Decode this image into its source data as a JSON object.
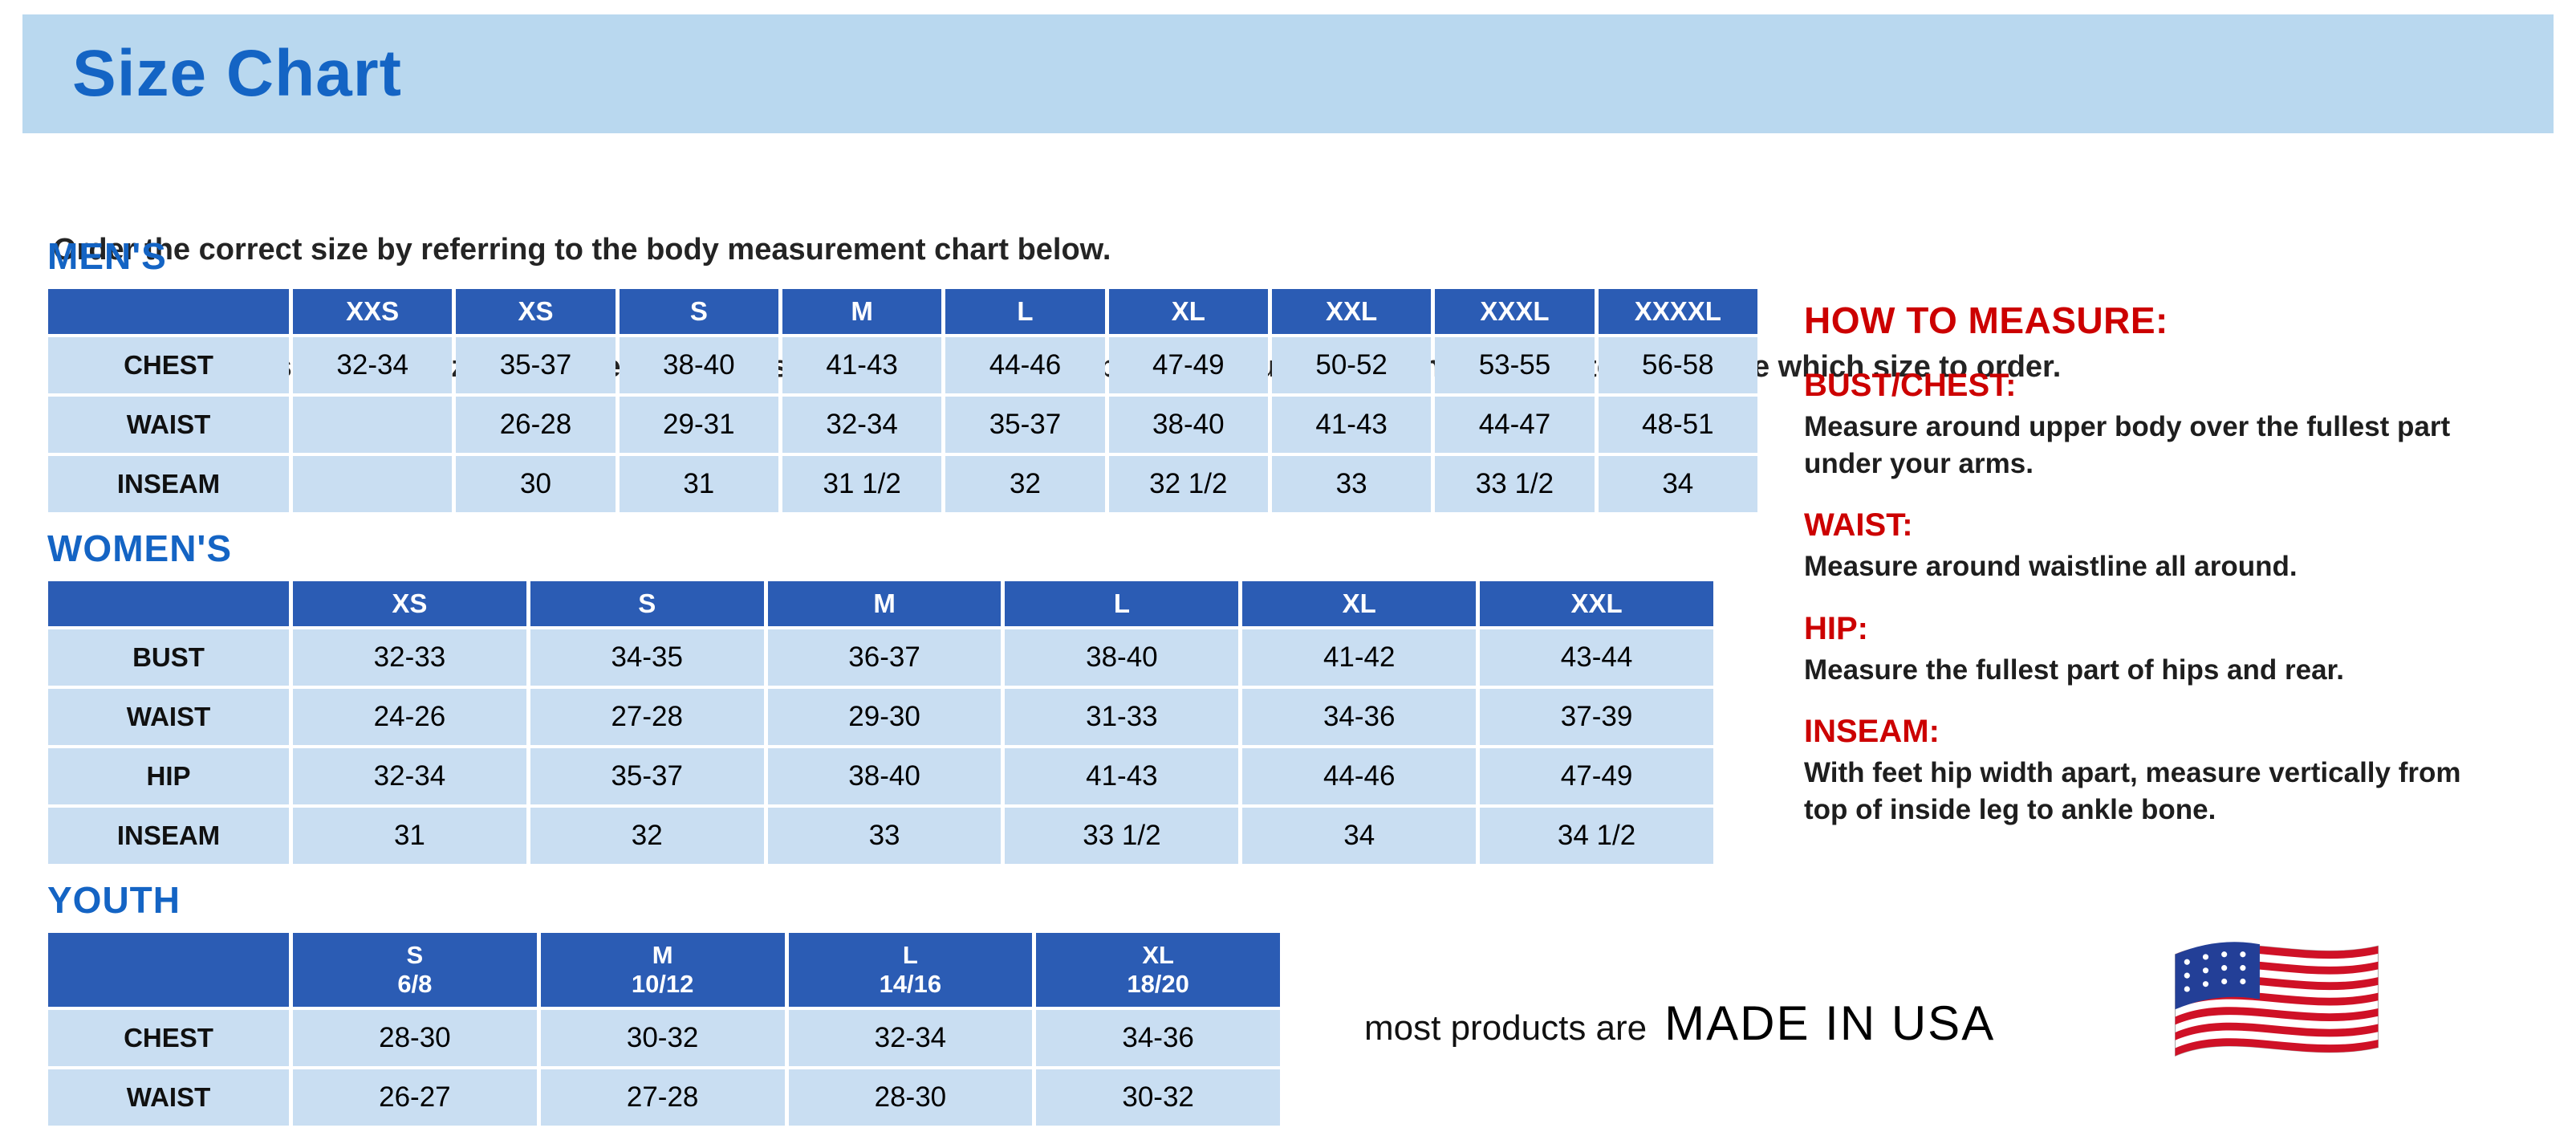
{
  "page": {
    "title": "Size Chart",
    "intro_line1": "Order the correct size by referring to the body measurement chart below.",
    "intro_line2": "Measurements shown on size chart are body measurements.  Find your body measurements on the chart to determine which size to order."
  },
  "tables": {
    "mens": {
      "heading": "MEN'S",
      "columns": [
        "",
        "XXS",
        "XS",
        "S",
        "M",
        "L",
        "XL",
        "XXL",
        "XXXL",
        "XXXXL"
      ],
      "rows": [
        {
          "label": "CHEST",
          "values": [
            "32-34",
            "35-37",
            "38-40",
            "41-43",
            "44-46",
            "47-49",
            "50-52",
            "53-55",
            "56-58"
          ]
        },
        {
          "label": "WAIST",
          "values": [
            "",
            "26-28",
            "29-31",
            "32-34",
            "35-37",
            "38-40",
            "41-43",
            "44-47",
            "48-51"
          ]
        },
        {
          "label": "INSEAM",
          "values": [
            "",
            "30",
            "31",
            "31 1/2",
            "32",
            "32 1/2",
            "33",
            "33 1/2",
            "34"
          ]
        }
      ]
    },
    "womens": {
      "heading": "WOMEN'S",
      "columns": [
        "",
        "XS",
        "S",
        "M",
        "L",
        "XL",
        "XXL"
      ],
      "rows": [
        {
          "label": "BUST",
          "values": [
            "32-33",
            "34-35",
            "36-37",
            "38-40",
            "41-42",
            "43-44"
          ]
        },
        {
          "label": "WAIST",
          "values": [
            "24-26",
            "27-28",
            "29-30",
            "31-33",
            "34-36",
            "37-39"
          ]
        },
        {
          "label": "HIP",
          "values": [
            "32-34",
            "35-37",
            "38-40",
            "41-43",
            "44-46",
            "47-49"
          ]
        },
        {
          "label": "INSEAM",
          "values": [
            "31",
            "32",
            "33",
            "33 1/2",
            "34",
            "34 1/2"
          ]
        }
      ]
    },
    "youth": {
      "heading": "YOUTH",
      "columns": [
        "",
        "S\n6/8",
        "M\n10/12",
        "L\n14/16",
        "XL\n18/20"
      ],
      "rows": [
        {
          "label": "CHEST",
          "values": [
            "28-30",
            "30-32",
            "32-34",
            "34-36"
          ]
        },
        {
          "label": "WAIST",
          "values": [
            "26-27",
            "27-28",
            "28-30",
            "30-32"
          ]
        }
      ]
    }
  },
  "how_to_measure": {
    "heading": "HOW TO MEASURE:",
    "sections": [
      {
        "label": "BUST/CHEST:",
        "text": "Measure around upper body over the fullest part under your arms."
      },
      {
        "label": "WAIST:",
        "text": "Measure around waistline all around."
      },
      {
        "label": "HIP:",
        "text": "Measure the fullest part of hips and rear."
      },
      {
        "label": "INSEAM:",
        "text": "With feet hip width apart, measure vertically from top of inside leg to ankle bone."
      }
    ]
  },
  "footer": {
    "made_in_prefix": "most products are",
    "made_in": "MADE IN USA",
    "flag_icon": "us-flag-icon"
  },
  "colors": {
    "banner_bg": "#b9d8ef",
    "heading_blue": "#1464c4",
    "table_header_bg": "#2b5cb4",
    "cell_bg": "#c9def2",
    "accent_red": "#cc0000"
  }
}
